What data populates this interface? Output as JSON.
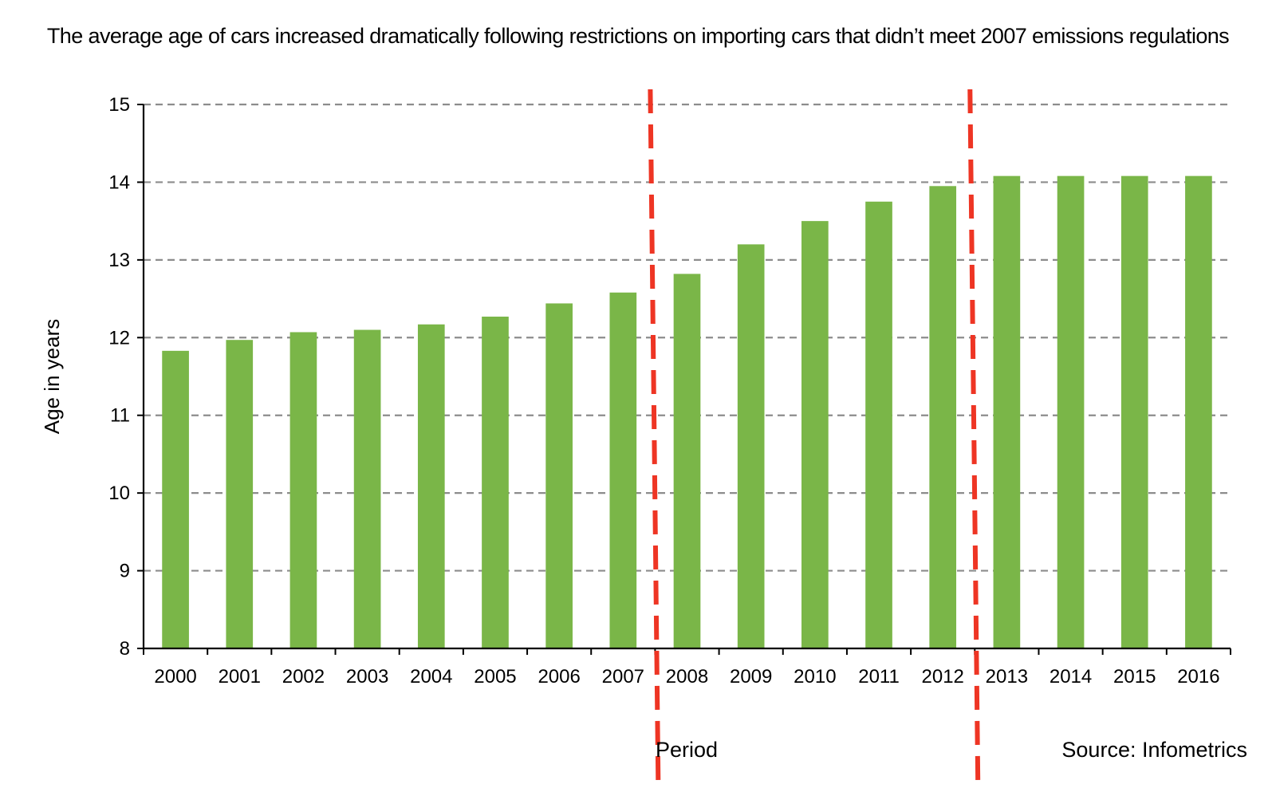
{
  "chart_data": {
    "type": "bar",
    "title": "The average age of cars increased dramatically following restrictions on importing cars that didn’t meet 2007 emissions regulations",
    "xlabel": "Period",
    "ylabel": "Age in years",
    "source": "Source: Infometrics",
    "categories": [
      "2000",
      "2001",
      "2002",
      "2003",
      "2004",
      "2005",
      "2006",
      "2007",
      "2008",
      "2009",
      "2010",
      "2011",
      "2012",
      "2013",
      "2014",
      "2015",
      "2016"
    ],
    "values": [
      11.83,
      11.97,
      12.07,
      12.1,
      12.17,
      12.27,
      12.44,
      12.58,
      12.82,
      13.2,
      13.5,
      13.75,
      13.95,
      14.08,
      14.08,
      14.08,
      14.08
    ],
    "ylim": [
      8,
      15
    ],
    "yticks": [
      8,
      9,
      10,
      11,
      12,
      13,
      14,
      15
    ],
    "grid": true,
    "bar_color": "#7ab648",
    "grid_color": "#8c8c8c",
    "reference_lines": [
      {
        "position": "2008",
        "color": "#ee3524",
        "style": "dashed"
      },
      {
        "position": "2013",
        "color": "#ee3524",
        "style": "dashed"
      }
    ]
  }
}
